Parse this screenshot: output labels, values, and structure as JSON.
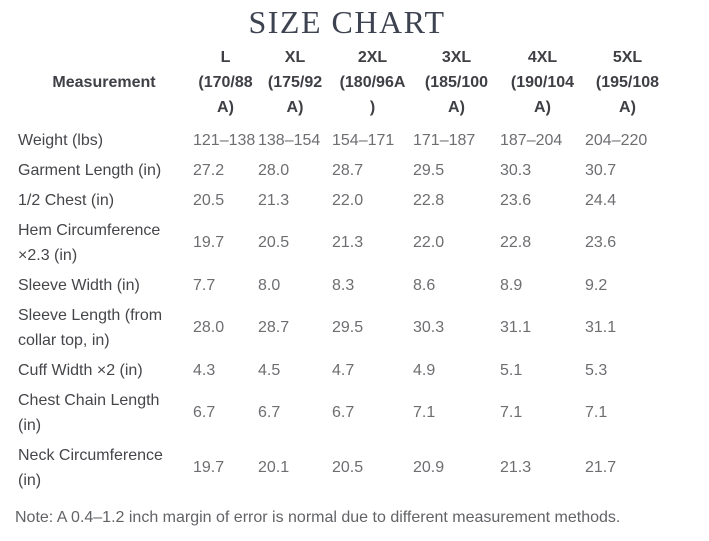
{
  "title": "SIZE CHART",
  "table": {
    "columns": [
      {
        "label": "Measurement"
      },
      {
        "lines": [
          "L",
          "(170/88",
          "A)"
        ]
      },
      {
        "lines": [
          "XL",
          "(175/92",
          "A)"
        ]
      },
      {
        "lines": [
          "2XL",
          "(180/96A",
          ")"
        ]
      },
      {
        "lines": [
          "3XL",
          "(185/100",
          "A)"
        ]
      },
      {
        "lines": [
          "4XL",
          "(190/104",
          "A)"
        ]
      },
      {
        "lines": [
          "5XL",
          "(195/108",
          "A)"
        ]
      }
    ],
    "rows": [
      {
        "label": "Weight (lbs)",
        "values": [
          "121–138",
          "138–154",
          "154–171",
          "171–187",
          "187–204",
          "204–220"
        ]
      },
      {
        "label": "Garment Length (in)",
        "values": [
          "27.2",
          "28.0",
          "28.7",
          "29.5",
          "30.3",
          "30.7"
        ]
      },
      {
        "label": "1/2 Chest (in)",
        "values": [
          "20.5",
          "21.3",
          "22.0",
          "22.8",
          "23.6",
          "24.4"
        ]
      },
      {
        "label": "Hem Circumference ×2.3 (in)",
        "values": [
          "19.7",
          "20.5",
          "21.3",
          "22.0",
          "22.8",
          "23.6"
        ]
      },
      {
        "label": "Sleeve Width (in)",
        "values": [
          "7.7",
          "8.0",
          "8.3",
          "8.6",
          "8.9",
          "9.2"
        ]
      },
      {
        "label": "Sleeve Length (from collar top, in)",
        "values": [
          "28.0",
          "28.7",
          "29.5",
          "30.3",
          "31.1",
          "31.1"
        ]
      },
      {
        "label": "Cuff Width ×2 (in)",
        "values": [
          "4.3",
          "4.5",
          "4.7",
          "4.9",
          "5.1",
          "5.3"
        ]
      },
      {
        "label": "Chest Chain Length (in)",
        "values": [
          "6.7",
          "6.7",
          "6.7",
          "7.1",
          "7.1",
          "7.1"
        ]
      },
      {
        "label": "Neck Circumference (in)",
        "values": [
          "19.7",
          "20.1",
          "20.5",
          "20.9",
          "21.3",
          "21.7"
        ]
      }
    ]
  },
  "note": "Note: A 0.4–1.2 inch margin of error is normal due to different measurement methods.",
  "colors": {
    "background": "#ffffff",
    "title_text": "#3d4350",
    "header_text": "#3f4045",
    "label_text": "#45464a",
    "value_text": "#6d6e71",
    "note_text": "#626367"
  }
}
